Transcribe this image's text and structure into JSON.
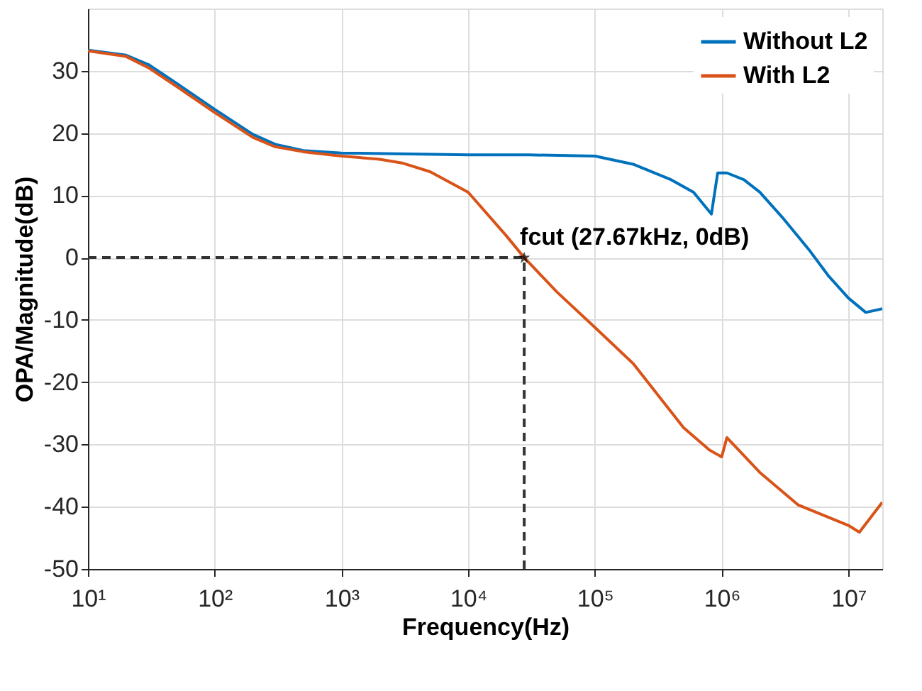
{
  "chart_data": {
    "type": "line",
    "xlabel": "Frequency(Hz)",
    "ylabel": "OPA/Magnitude(dB)",
    "log": "x",
    "grid": true,
    "legend": "top right",
    "line_style": "solid",
    "marker": "none",
    "xlim": [
      10,
      18500000
    ],
    "ylim": [
      -50,
      40
    ],
    "xticks": [
      {
        "value": 10,
        "label": "10¹"
      },
      {
        "value": 100,
        "label": "10²"
      },
      {
        "value": 1000,
        "label": "10³"
      },
      {
        "value": 10000,
        "label": "10⁴"
      },
      {
        "value": 100000,
        "label": "10⁵"
      },
      {
        "value": 1000000,
        "label": "10⁶"
      },
      {
        "value": 10000000,
        "label": "10⁷"
      }
    ],
    "yticks": [
      -50,
      -40,
      -30,
      -20,
      -10,
      0,
      10,
      20,
      30
    ],
    "series": [
      {
        "name": "Without L2",
        "color": "#0072bd",
        "x": [
          10,
          20,
          30,
          50,
          100,
          200,
          300,
          500,
          1000,
          10000,
          30000,
          100000,
          200000,
          400000,
          600000,
          830000,
          930000,
          1100000,
          1500000,
          2000000,
          3000000,
          5000000,
          7000000,
          10000000,
          13700000,
          18500000
        ],
        "values": [
          33.3,
          32.5,
          31,
          28,
          23.8,
          19.8,
          18.2,
          17.2,
          16.8,
          16.5,
          16.5,
          16.3,
          15,
          12.5,
          10.5,
          7,
          13.6,
          13.6,
          12.5,
          10.5,
          6.5,
          1,
          -3,
          -6.5,
          -8.8,
          -8.2
        ]
      },
      {
        "name": "With L2",
        "color": "#d95319",
        "x": [
          10,
          20,
          30,
          50,
          100,
          200,
          300,
          500,
          1000,
          2000,
          3000,
          5000,
          10000,
          20000,
          27670,
          50000,
          100000,
          200000,
          500000,
          800000,
          1000000,
          1100000,
          2000000,
          4000000,
          10000000,
          12200000,
          18500000
        ],
        "values": [
          33.2,
          32.3,
          30.5,
          27.5,
          23.3,
          19.3,
          17.8,
          17,
          16.3,
          15.8,
          15.2,
          13.8,
          10.5,
          3.5,
          0,
          -5.5,
          -11.2,
          -17,
          -27.3,
          -30.9,
          -32,
          -28.9,
          -34.5,
          -39.7,
          -43,
          -44.1,
          -39.3
        ]
      },
      {
        "type": "line",
        "color": "#333333",
        "line_style": "dashed",
        "x": [
          10,
          27670
        ],
        "values": [
          0,
          0
        ]
      },
      {
        "type": "line",
        "color": "#333333",
        "line_style": "dashed",
        "x": [
          27670,
          27670
        ],
        "values": [
          -50,
          0
        ]
      },
      {
        "type": "scatter",
        "color": "#000000",
        "marker": "star",
        "x": [
          27670
        ],
        "values": [
          0
        ]
      }
    ],
    "annotations": [
      {
        "text": "fcut (27.67kHz, 0dB)",
        "x": 27670,
        "y": 0
      }
    ]
  }
}
